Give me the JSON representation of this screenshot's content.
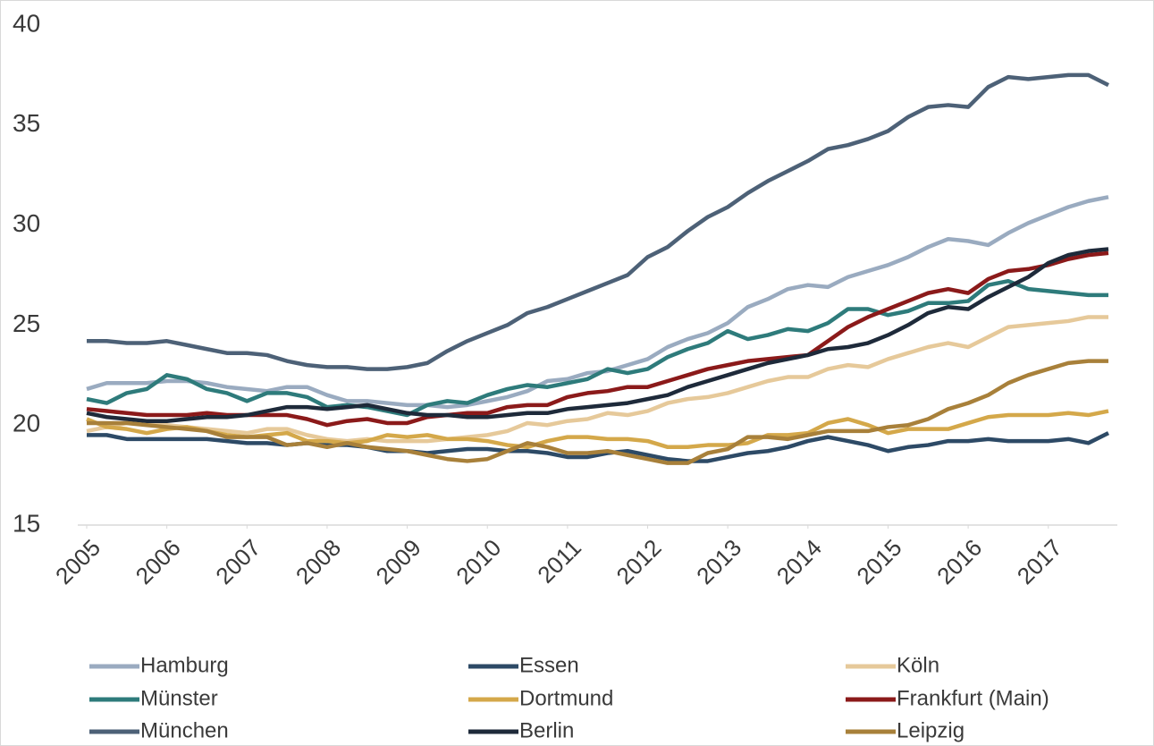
{
  "chart_data": {
    "type": "line",
    "x": [
      2005,
      2005.25,
      2005.5,
      2005.75,
      2006,
      2006.25,
      2006.5,
      2006.75,
      2007,
      2007.25,
      2007.5,
      2007.75,
      2008,
      2008.25,
      2008.5,
      2008.75,
      2009,
      2009.25,
      2009.5,
      2009.75,
      2010,
      2010.25,
      2010.5,
      2010.75,
      2011,
      2011.25,
      2011.5,
      2011.75,
      2012,
      2012.25,
      2012.5,
      2012.75,
      2013,
      2013.25,
      2013.5,
      2013.75,
      2014,
      2014.25,
      2014.5,
      2014.75,
      2015,
      2015.25,
      2015.5,
      2015.75,
      2016,
      2016.25,
      2016.5,
      2016.75,
      2017,
      2017.25,
      2017.5,
      2017.75
    ],
    "xlim": [
      2005,
      2017.75
    ],
    "xticks": [
      2005,
      2006,
      2007,
      2008,
      2009,
      2010,
      2011,
      2012,
      2013,
      2014,
      2015,
      2016,
      2017
    ],
    "ylim": [
      15,
      40
    ],
    "yticks": [
      15,
      20,
      25,
      30,
      35,
      40
    ],
    "grid": false,
    "legend": "bottom",
    "series": [
      {
        "name": "Hamburg",
        "color": "#9aabc0",
        "values": [
          21.8,
          22.1,
          22.1,
          22.1,
          22.2,
          22.2,
          22.1,
          21.9,
          21.8,
          21.7,
          21.9,
          21.9,
          21.5,
          21.2,
          21.2,
          21.1,
          21.0,
          21.0,
          20.9,
          21.0,
          21.2,
          21.4,
          21.7,
          22.2,
          22.3,
          22.6,
          22.7,
          23.0,
          23.3,
          23.9,
          24.3,
          24.6,
          25.1,
          25.9,
          26.3,
          26.8,
          27.0,
          26.9,
          27.4,
          27.7,
          28.0,
          28.4,
          28.9,
          29.3,
          29.2,
          29.0,
          29.6,
          30.1,
          30.5,
          30.9,
          31.2,
          31.4
        ]
      },
      {
        "name": "Essen",
        "color": "#2d4a66",
        "values": [
          19.5,
          19.5,
          19.3,
          19.3,
          19.3,
          19.3,
          19.3,
          19.2,
          19.1,
          19.1,
          19.0,
          19.1,
          19.0,
          19.0,
          18.9,
          18.7,
          18.7,
          18.6,
          18.7,
          18.8,
          18.8,
          18.7,
          18.7,
          18.6,
          18.4,
          18.4,
          18.6,
          18.7,
          18.5,
          18.3,
          18.2,
          18.2,
          18.4,
          18.6,
          18.7,
          18.9,
          19.2,
          19.4,
          19.2,
          19.0,
          18.7,
          18.9,
          19.0,
          19.2,
          19.2,
          19.3,
          19.2,
          19.2,
          19.2,
          19.3,
          19.1,
          19.6
        ]
      },
      {
        "name": "Köln",
        "color": "#e6c99a",
        "values": [
          19.7,
          19.9,
          20.1,
          20.1,
          20.0,
          19.9,
          19.8,
          19.7,
          19.6,
          19.8,
          19.8,
          19.5,
          19.3,
          19.2,
          19.3,
          19.2,
          19.2,
          19.2,
          19.3,
          19.4,
          19.5,
          19.7,
          20.1,
          20.0,
          20.2,
          20.3,
          20.6,
          20.5,
          20.7,
          21.1,
          21.3,
          21.4,
          21.6,
          21.9,
          22.2,
          22.4,
          22.4,
          22.8,
          23.0,
          22.9,
          23.3,
          23.6,
          23.9,
          24.1,
          23.9,
          24.4,
          24.9,
          25.0,
          25.1,
          25.2,
          25.4,
          25.4
        ]
      },
      {
        "name": "Münster",
        "color": "#2e7b7b",
        "values": [
          21.3,
          21.1,
          21.6,
          21.8,
          22.5,
          22.3,
          21.8,
          21.6,
          21.2,
          21.6,
          21.6,
          21.4,
          20.9,
          21.0,
          20.9,
          20.7,
          20.5,
          21.0,
          21.2,
          21.1,
          21.5,
          21.8,
          22.0,
          21.9,
          22.1,
          22.3,
          22.8,
          22.6,
          22.8,
          23.4,
          23.8,
          24.1,
          24.7,
          24.3,
          24.5,
          24.8,
          24.7,
          25.1,
          25.8,
          25.8,
          25.5,
          25.7,
          26.1,
          26.1,
          26.2,
          27.0,
          27.2,
          26.8,
          26.7,
          26.6,
          26.5,
          26.5
        ]
      },
      {
        "name": "Dortmund",
        "color": "#d4a84a",
        "values": [
          20.3,
          19.9,
          19.8,
          19.6,
          19.8,
          19.9,
          19.7,
          19.5,
          19.4,
          19.5,
          19.6,
          19.2,
          19.2,
          19.1,
          19.2,
          19.5,
          19.4,
          19.5,
          19.3,
          19.3,
          19.2,
          19.0,
          18.9,
          19.2,
          19.4,
          19.4,
          19.3,
          19.3,
          19.2,
          18.9,
          18.9,
          19.0,
          19.0,
          19.1,
          19.5,
          19.5,
          19.6,
          20.1,
          20.3,
          20.0,
          19.6,
          19.8,
          19.8,
          19.8,
          20.1,
          20.4,
          20.5,
          20.5,
          20.5,
          20.6,
          20.5,
          20.7
        ]
      },
      {
        "name": "Frankfurt (Main)",
        "color": "#8b1a1a",
        "values": [
          20.8,
          20.7,
          20.6,
          20.5,
          20.5,
          20.5,
          20.6,
          20.5,
          20.5,
          20.5,
          20.5,
          20.3,
          20.0,
          20.2,
          20.3,
          20.1,
          20.1,
          20.4,
          20.5,
          20.6,
          20.6,
          20.9,
          21.0,
          21.0,
          21.4,
          21.6,
          21.7,
          21.9,
          21.9,
          22.2,
          22.5,
          22.8,
          23.0,
          23.2,
          23.3,
          23.4,
          23.5,
          24.2,
          24.9,
          25.4,
          25.8,
          26.2,
          26.6,
          26.8,
          26.6,
          27.3,
          27.7,
          27.8,
          28.0,
          28.3,
          28.5,
          28.6
        ]
      },
      {
        "name": "München",
        "color": "#4d6177",
        "values": [
          24.2,
          24.2,
          24.1,
          24.1,
          24.2,
          24.0,
          23.8,
          23.6,
          23.6,
          23.5,
          23.2,
          23.0,
          22.9,
          22.9,
          22.8,
          22.8,
          22.9,
          23.1,
          23.7,
          24.2,
          24.6,
          25.0,
          25.6,
          25.9,
          26.3,
          26.7,
          27.1,
          27.5,
          28.4,
          28.9,
          29.7,
          30.4,
          30.9,
          31.6,
          32.2,
          32.7,
          33.2,
          33.8,
          34.0,
          34.3,
          34.7,
          35.4,
          35.9,
          36.0,
          35.9,
          36.9,
          37.4,
          37.3,
          37.4,
          37.5,
          37.5,
          37.0
        ]
      },
      {
        "name": "Berlin",
        "color": "#1e2a3a",
        "values": [
          20.6,
          20.4,
          20.3,
          20.2,
          20.2,
          20.3,
          20.4,
          20.4,
          20.5,
          20.7,
          20.9,
          20.9,
          20.8,
          20.9,
          21.0,
          20.8,
          20.6,
          20.5,
          20.5,
          20.4,
          20.4,
          20.5,
          20.6,
          20.6,
          20.8,
          20.9,
          21.0,
          21.1,
          21.3,
          21.5,
          21.9,
          22.2,
          22.5,
          22.8,
          23.1,
          23.3,
          23.5,
          23.8,
          23.9,
          24.1,
          24.5,
          25.0,
          25.6,
          25.9,
          25.8,
          26.4,
          26.9,
          27.4,
          28.1,
          28.5,
          28.7,
          28.8
        ]
      },
      {
        "name": "Leipzig",
        "color": "#a8803a",
        "values": [
          20.1,
          20.1,
          20.1,
          20.0,
          19.9,
          19.8,
          19.7,
          19.4,
          19.4,
          19.4,
          19.0,
          19.1,
          18.9,
          19.1,
          18.9,
          18.8,
          18.7,
          18.5,
          18.3,
          18.2,
          18.3,
          18.7,
          19.1,
          18.9,
          18.6,
          18.6,
          18.7,
          18.5,
          18.3,
          18.1,
          18.1,
          18.6,
          18.8,
          19.4,
          19.4,
          19.3,
          19.5,
          19.7,
          19.7,
          19.7,
          19.9,
          20.0,
          20.3,
          20.8,
          21.1,
          21.5,
          22.1,
          22.5,
          22.8,
          23.1,
          23.2,
          23.2
        ]
      }
    ]
  }
}
